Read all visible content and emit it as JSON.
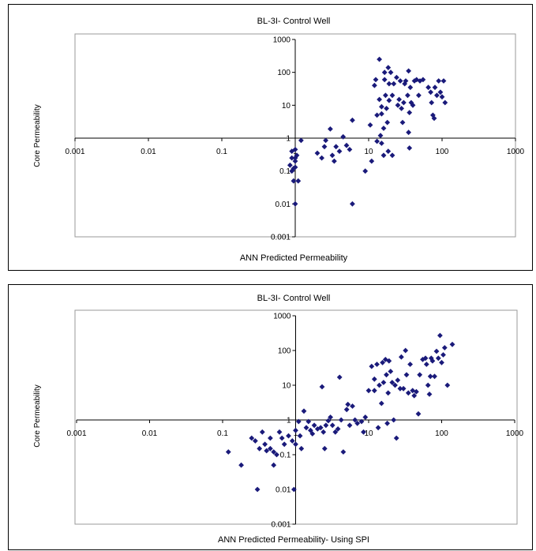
{
  "chart_data": [
    {
      "type": "scatter",
      "title": "BL-3I- Control Well",
      "xlabel": "ANN Predicted Permeability",
      "ylabel": "Core Permeability",
      "xscale": "log",
      "yscale": "log",
      "xlim": [
        0.001,
        1000
      ],
      "ylim": [
        0.001,
        1000
      ],
      "xticks": [
        "0.001",
        "0.01",
        "0.1",
        "1",
        "10",
        "100",
        "1000"
      ],
      "yticks": [
        "0.001",
        "0.01",
        "0.1",
        "1",
        "10",
        "100",
        "1000"
      ],
      "grid": false,
      "legend": "none",
      "marker_color": "#1a1a7a",
      "points": [
        [
          0.85,
          0.15
        ],
        [
          0.9,
          0.1
        ],
        [
          0.95,
          0.12
        ],
        [
          1.0,
          0.2
        ],
        [
          1.05,
          0.3
        ],
        [
          0.9,
          0.4
        ],
        [
          1.0,
          0.45
        ],
        [
          1.1,
          0.05
        ],
        [
          0.95,
          0.05
        ],
        [
          1.0,
          0.13
        ],
        [
          1.0,
          0.25
        ],
        [
          0.9,
          0.25
        ],
        [
          1.0,
          0.01
        ],
        [
          1.2,
          0.85
        ],
        [
          2.0,
          0.35
        ],
        [
          2.3,
          0.25
        ],
        [
          2.5,
          0.55
        ],
        [
          2.6,
          0.85
        ],
        [
          3.0,
          1.9
        ],
        [
          3.2,
          0.3
        ],
        [
          3.4,
          0.2
        ],
        [
          3.6,
          0.55
        ],
        [
          4.0,
          0.4
        ],
        [
          4.5,
          1.1
        ],
        [
          5.0,
          0.6
        ],
        [
          5.5,
          0.45
        ],
        [
          6.0,
          3.5
        ],
        [
          6.0,
          0.01
        ],
        [
          9.0,
          0.1
        ],
        [
          10.5,
          2.5
        ],
        [
          11.0,
          0.2
        ],
        [
          12.0,
          40
        ],
        [
          12.5,
          60
        ],
        [
          13.0,
          5.0
        ],
        [
          13.0,
          0.8
        ],
        [
          14.0,
          250
        ],
        [
          14.0,
          15
        ],
        [
          14.5,
          1.2
        ],
        [
          15.0,
          0.7
        ],
        [
          15.0,
          5.5
        ],
        [
          15.0,
          9.0
        ],
        [
          16.0,
          0.3
        ],
        [
          16.0,
          2.0
        ],
        [
          16.5,
          100
        ],
        [
          16.5,
          60
        ],
        [
          17.0,
          20
        ],
        [
          17.5,
          8.0
        ],
        [
          18.0,
          3.0
        ],
        [
          18.5,
          0.4
        ],
        [
          18.5,
          140
        ],
        [
          19.0,
          45
        ],
        [
          19.0,
          14
        ],
        [
          20.0,
          100
        ],
        [
          21.0,
          0.3
        ],
        [
          21.0,
          20
        ],
        [
          22.0,
          45
        ],
        [
          24.0,
          70
        ],
        [
          25.0,
          10
        ],
        [
          26.0,
          15
        ],
        [
          27.0,
          55
        ],
        [
          28.0,
          8.0
        ],
        [
          29.0,
          3.0
        ],
        [
          30.0,
          12
        ],
        [
          31.0,
          45
        ],
        [
          32.0,
          55
        ],
        [
          34.0,
          20
        ],
        [
          35.0,
          1.5
        ],
        [
          35.0,
          110
        ],
        [
          36.0,
          6.0
        ],
        [
          36.0,
          0.5
        ],
        [
          37.0,
          35
        ],
        [
          38.0,
          12
        ],
        [
          40.0,
          10
        ],
        [
          42.0,
          55
        ],
        [
          45.0,
          60
        ],
        [
          48.0,
          20
        ],
        [
          50.0,
          55
        ],
        [
          55.0,
          60
        ],
        [
          65.0,
          35
        ],
        [
          70.0,
          25
        ],
        [
          72.0,
          12
        ],
        [
          75.0,
          5.0
        ],
        [
          78.0,
          4.0
        ],
        [
          80.0,
          35
        ],
        [
          85.0,
          20
        ],
        [
          90.0,
          55
        ],
        [
          95.0,
          25
        ],
        [
          100.0,
          18
        ],
        [
          105.0,
          55
        ],
        [
          110.0,
          12
        ]
      ]
    },
    {
      "type": "scatter",
      "title": "BL-3I- Control Well",
      "xlabel": "ANN Predicted Permeability- Using SPI",
      "ylabel": "Core Permeability",
      "xscale": "log",
      "yscale": "log",
      "xlim": [
        0.001,
        1000
      ],
      "ylim": [
        0.001,
        1000
      ],
      "xticks": [
        "0.001",
        "0.01",
        "0.1",
        "1",
        "10",
        "100",
        "1000"
      ],
      "yticks": [
        "0.001",
        "0.01",
        "0.1",
        "1",
        "10",
        "100",
        "1000"
      ],
      "grid": false,
      "legend": "none",
      "marker_color": "#1a1a7a",
      "points": [
        [
          0.12,
          0.12
        ],
        [
          0.18,
          0.05
        ],
        [
          0.25,
          0.3
        ],
        [
          0.28,
          0.25
        ],
        [
          0.3,
          0.01
        ],
        [
          0.32,
          0.15
        ],
        [
          0.35,
          0.45
        ],
        [
          0.38,
          0.2
        ],
        [
          0.4,
          0.13
        ],
        [
          0.45,
          0.3
        ],
        [
          0.45,
          0.15
        ],
        [
          0.5,
          0.12
        ],
        [
          0.5,
          0.05
        ],
        [
          0.55,
          0.1
        ],
        [
          0.6,
          0.45
        ],
        [
          0.65,
          0.3
        ],
        [
          0.7,
          0.2
        ],
        [
          0.8,
          0.35
        ],
        [
          0.9,
          0.25
        ],
        [
          0.95,
          0.01
        ],
        [
          1.0,
          0.5
        ],
        [
          1.0,
          0.2
        ],
        [
          1.1,
          0.9
        ],
        [
          1.15,
          0.35
        ],
        [
          1.2,
          0.15
        ],
        [
          1.3,
          1.8
        ],
        [
          1.4,
          0.6
        ],
        [
          1.5,
          0.9
        ],
        [
          1.6,
          0.5
        ],
        [
          1.7,
          0.4
        ],
        [
          1.8,
          0.7
        ],
        [
          2.0,
          0.55
        ],
        [
          2.2,
          0.6
        ],
        [
          2.3,
          9.0
        ],
        [
          2.4,
          0.45
        ],
        [
          2.5,
          0.15
        ],
        [
          2.6,
          0.7
        ],
        [
          2.8,
          0.95
        ],
        [
          3.0,
          1.2
        ],
        [
          3.2,
          0.7
        ],
        [
          3.5,
          0.45
        ],
        [
          3.8,
          0.55
        ],
        [
          4.0,
          17
        ],
        [
          4.2,
          1.0
        ],
        [
          4.5,
          0.12
        ],
        [
          5.0,
          2.0
        ],
        [
          5.2,
          2.8
        ],
        [
          5.5,
          0.7
        ],
        [
          6.0,
          2.5
        ],
        [
          6.5,
          1.0
        ],
        [
          7.0,
          0.8
        ],
        [
          8.0,
          0.9
        ],
        [
          8.5,
          0.45
        ],
        [
          9.0,
          1.2
        ],
        [
          10.0,
          7.0
        ],
        [
          11.0,
          35
        ],
        [
          12.0,
          7.0
        ],
        [
          12.0,
          15
        ],
        [
          13.0,
          40
        ],
        [
          13.5,
          0.6
        ],
        [
          14.0,
          10
        ],
        [
          15.0,
          3.0
        ],
        [
          15.5,
          45
        ],
        [
          16.0,
          12
        ],
        [
          17.0,
          55
        ],
        [
          17.5,
          20
        ],
        [
          18.0,
          0.8
        ],
        [
          18.5,
          6.0
        ],
        [
          19.0,
          50
        ],
        [
          20.0,
          25
        ],
        [
          21.0,
          12
        ],
        [
          22.0,
          1.0
        ],
        [
          23.0,
          10
        ],
        [
          24.0,
          0.3
        ],
        [
          25.0,
          14
        ],
        [
          27.0,
          8.0
        ],
        [
          28.0,
          65
        ],
        [
          30.0,
          8.0
        ],
        [
          32.0,
          100
        ],
        [
          33.0,
          20
        ],
        [
          35.0,
          6.0
        ],
        [
          37.0,
          40
        ],
        [
          40.0,
          7.0
        ],
        [
          42.0,
          5.0
        ],
        [
          45.0,
          6.5
        ],
        [
          48.0,
          1.5
        ],
        [
          50.0,
          20
        ],
        [
          55.0,
          55
        ],
        [
          60.0,
          60
        ],
        [
          62.0,
          40
        ],
        [
          65.0,
          10
        ],
        [
          68.0,
          5.5
        ],
        [
          70.0,
          18
        ],
        [
          72.0,
          60
        ],
        [
          75.0,
          50
        ],
        [
          80.0,
          18
        ],
        [
          85.0,
          95
        ],
        [
          90.0,
          60
        ],
        [
          95.0,
          270
        ],
        [
          100.0,
          45
        ],
        [
          105.0,
          75
        ],
        [
          110.0,
          120
        ],
        [
          120.0,
          10
        ],
        [
          140.0,
          150
        ]
      ]
    }
  ]
}
